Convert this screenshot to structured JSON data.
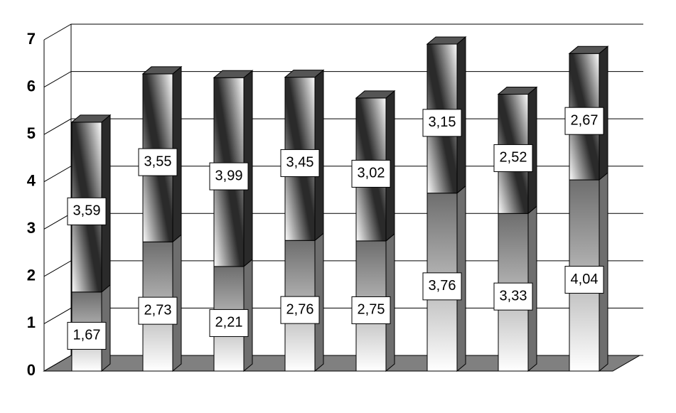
{
  "chart_data": {
    "type": "stacked-bar-3d",
    "categories": [
      null,
      null,
      null,
      null,
      null,
      null,
      null,
      null
    ],
    "series": [
      {
        "color": "#6e6e6e",
        "values": [
          1.67,
          2.73,
          2.21,
          2.76,
          2.75,
          3.76,
          3.33,
          4.04
        ],
        "value_labels": [
          "1,67",
          "2,73",
          "2,21",
          "2,76",
          "2,75",
          "3,76",
          "3,33",
          "4,04"
        ]
      },
      {
        "color": "#2a2a2a",
        "values": [
          3.59,
          3.55,
          3.99,
          3.45,
          3.02,
          3.15,
          2.52,
          2.67
        ],
        "value_labels": [
          "3,59",
          "3,55",
          "3,99",
          "3,45",
          "3,02",
          "3,15",
          "2,52",
          "2,67"
        ]
      }
    ],
    "ylim": [
      0,
      7
    ],
    "yticks": [
      0,
      1,
      2,
      3,
      4,
      5,
      6,
      7
    ],
    "grid": true
  }
}
